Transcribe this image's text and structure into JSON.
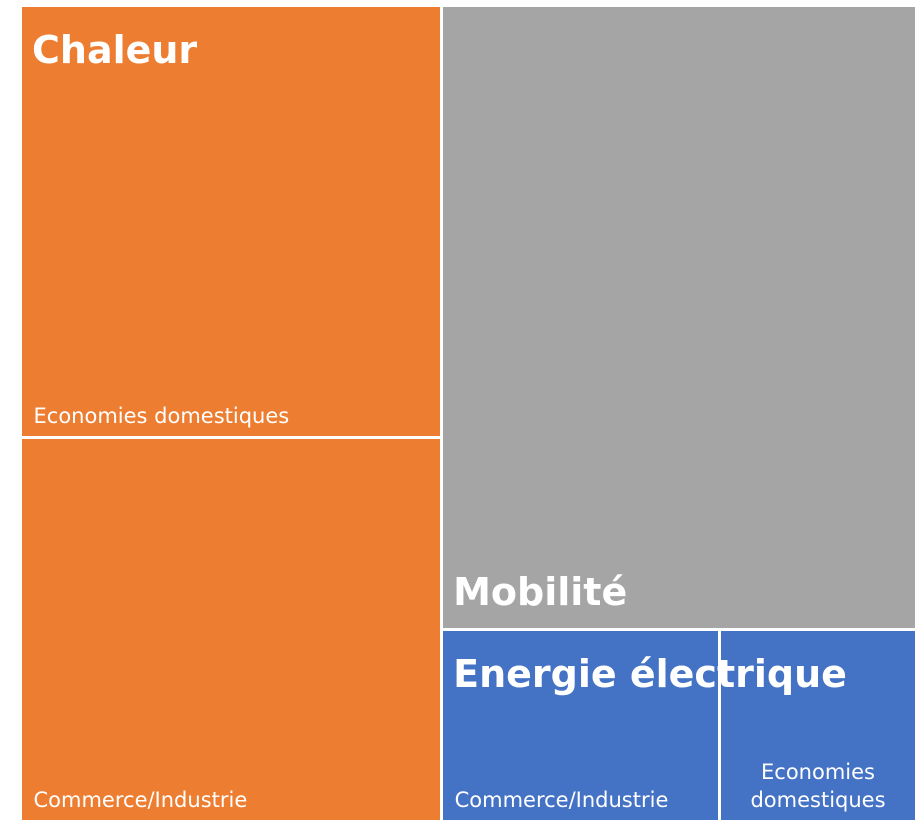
{
  "chart_data": {
    "type": "treemap",
    "groups": [
      {
        "name": "Chaleur",
        "color": "#ED7D31",
        "categories": [
          "Economies domestiques",
          "Commerce/Industrie"
        ],
        "values": [
          24.8,
          22.1
        ]
      },
      {
        "name": "Mobilité",
        "color": "#A5A5A5",
        "categories": [
          null
        ],
        "values": [
          40.5
        ]
      },
      {
        "name": "Energie électrique",
        "color": "#4472C4",
        "categories": [
          "Commerce/Industrie",
          "Economies domestiques"
        ],
        "values": [
          7.3,
          5.2
        ]
      }
    ]
  }
}
